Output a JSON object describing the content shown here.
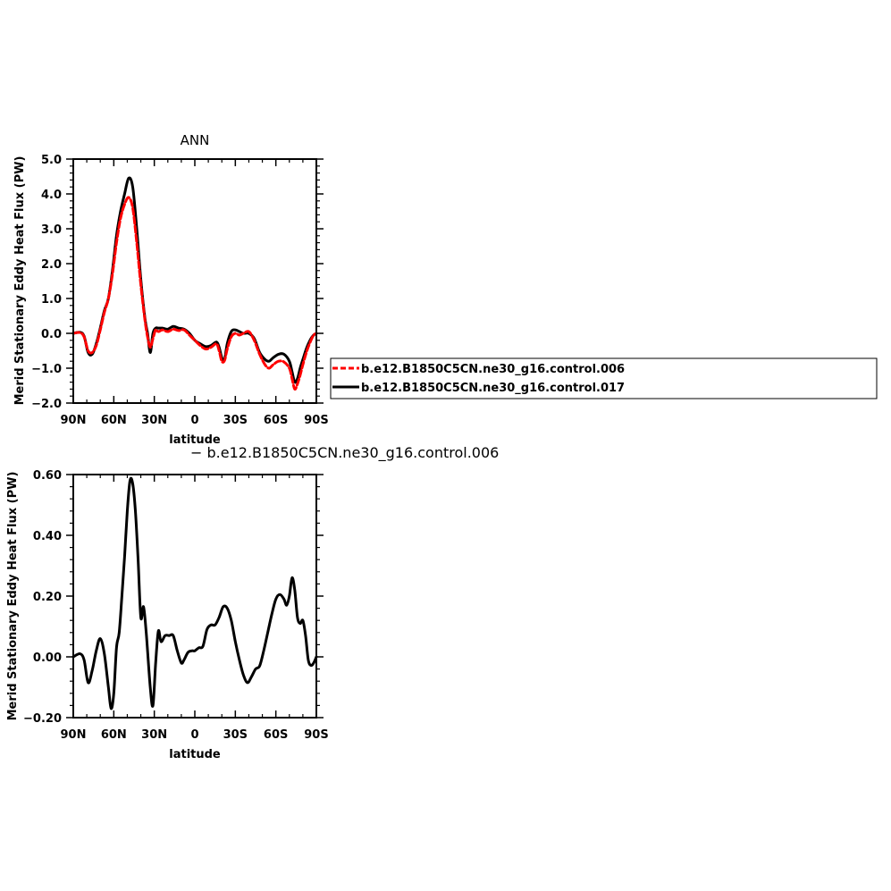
{
  "chart_data": [
    {
      "type": "line",
      "title": "ANN",
      "xlabel": "latitude",
      "ylabel": "Merid Stationary Eddy Heat Flux (PW)",
      "xlim": [
        90,
        -90
      ],
      "ylim": [
        -2.0,
        5.0
      ],
      "x_ticks": [
        90,
        60,
        30,
        0,
        -30,
        -60,
        -90
      ],
      "x_tick_labels": [
        "90N",
        "60N",
        "30N",
        "0",
        "30S",
        "60S",
        "90S"
      ],
      "y_ticks": [
        -2.0,
        -1.0,
        0.0,
        1.0,
        2.0,
        3.0,
        4.0,
        5.0
      ],
      "y_tick_labels": [
        "−2.0",
        "−1.0",
        "0.0",
        "1.0",
        "2.0",
        "3.0",
        "4.0",
        "5.0"
      ],
      "legend_position": "outside-right",
      "series": [
        {
          "name": "b.e12.B1850C5CN.ne30_g16.control.006",
          "color": "#ff0000",
          "dash": "dashed",
          "x": [
            90,
            85,
            82,
            79,
            76,
            73,
            70,
            67,
            64,
            61,
            58,
            55,
            52,
            49,
            46,
            43,
            40,
            37,
            35,
            33,
            31,
            29,
            27,
            24,
            20,
            16,
            12,
            8,
            4,
            0,
            -4,
            -8,
            -12,
            -16,
            -18,
            -20,
            -22,
            -24,
            -27,
            -30,
            -33,
            -36,
            -40,
            -44,
            -48,
            -52,
            -55,
            -58,
            -62,
            -66,
            -70,
            -72,
            -74,
            -76,
            -78,
            -80,
            -83,
            -86,
            -88,
            -90
          ],
          "y": [
            0.0,
            0.02,
            -0.1,
            -0.5,
            -0.55,
            -0.35,
            0.1,
            0.6,
            1.0,
            1.7,
            2.6,
            3.3,
            3.7,
            3.9,
            3.6,
            2.6,
            1.4,
            0.4,
            -0.1,
            -0.4,
            -0.15,
            0.1,
            0.05,
            0.1,
            0.05,
            0.12,
            0.08,
            0.1,
            -0.05,
            -0.2,
            -0.35,
            -0.45,
            -0.4,
            -0.3,
            -0.5,
            -0.8,
            -0.78,
            -0.45,
            -0.1,
            0.0,
            -0.05,
            0.0,
            0.05,
            -0.2,
            -0.6,
            -0.9,
            -1.0,
            -0.9,
            -0.8,
            -0.82,
            -1.0,
            -1.3,
            -1.6,
            -1.45,
            -1.2,
            -0.9,
            -0.5,
            -0.2,
            -0.05,
            0.0
          ]
        },
        {
          "name": "b.e12.B1850C5CN.ne30_g16.control.017",
          "color": "#000000",
          "dash": "solid",
          "x": [
            90,
            85,
            82,
            79,
            76,
            73,
            70,
            67,
            64,
            61,
            58,
            55,
            52,
            49,
            46,
            43,
            40,
            37,
            35,
            33,
            31,
            29,
            27,
            24,
            20,
            16,
            12,
            8,
            4,
            0,
            -4,
            -8,
            -12,
            -16,
            -18,
            -20,
            -22,
            -24,
            -27,
            -30,
            -33,
            -36,
            -40,
            -44,
            -48,
            -52,
            -55,
            -58,
            -62,
            -66,
            -70,
            -72,
            -74,
            -76,
            -78,
            -80,
            -83,
            -86,
            -88,
            -90
          ],
          "y": [
            0.0,
            0.03,
            -0.08,
            -0.55,
            -0.6,
            -0.3,
            0.15,
            0.65,
            1.0,
            1.8,
            2.8,
            3.5,
            4.0,
            4.45,
            4.2,
            3.0,
            1.55,
            0.45,
            0.0,
            -0.55,
            0.0,
            0.15,
            0.15,
            0.15,
            0.12,
            0.2,
            0.15,
            0.12,
            0.0,
            -0.2,
            -0.3,
            -0.38,
            -0.35,
            -0.25,
            -0.4,
            -0.7,
            -0.75,
            -0.3,
            0.05,
            0.1,
            0.05,
            0.0,
            0.0,
            -0.15,
            -0.55,
            -0.75,
            -0.8,
            -0.7,
            -0.6,
            -0.6,
            -0.8,
            -1.1,
            -1.4,
            -1.3,
            -1.0,
            -0.75,
            -0.4,
            -0.15,
            -0.05,
            0.0
          ]
        }
      ]
    },
    {
      "type": "line",
      "title": "− b.e12.B1850C5CN.ne30_g16.control.006",
      "xlabel": "latitude",
      "ylabel": "Merid Stationary Eddy Heat Flux (PW)",
      "xlim": [
        90,
        -90
      ],
      "ylim": [
        -0.2,
        0.6
      ],
      "x_ticks": [
        90,
        60,
        30,
        0,
        -30,
        -60,
        -90
      ],
      "x_tick_labels": [
        "90N",
        "60N",
        "30N",
        "0",
        "30S",
        "60S",
        "90S"
      ],
      "y_ticks": [
        -0.2,
        0.0,
        0.2,
        0.4,
        0.6
      ],
      "y_tick_labels": [
        "−0.20",
        "0.00",
        "0.20",
        "0.40",
        "0.60"
      ],
      "series": [
        {
          "color": "#000000",
          "dash": "solid",
          "x": [
            90,
            85,
            82,
            79,
            76,
            73,
            70,
            67,
            64,
            62,
            60,
            58,
            56,
            54,
            52,
            50,
            48,
            46,
            44,
            42,
            40,
            38,
            36,
            33,
            31,
            29,
            27,
            25,
            22,
            19,
            16,
            13,
            10,
            8,
            5,
            2,
            0,
            -3,
            -6,
            -9,
            -12,
            -15,
            -18,
            -21,
            -24,
            -27,
            -30,
            -33,
            -36,
            -39,
            -42,
            -45,
            -48,
            -51,
            -54,
            -57,
            -60,
            -63,
            -66,
            -68,
            -70,
            -72,
            -74,
            -76,
            -78,
            -80,
            -82,
            -84,
            -86,
            -88,
            -90
          ],
          "y": [
            0.0,
            0.01,
            -0.01,
            -0.085,
            -0.045,
            0.02,
            0.06,
            0.01,
            -0.1,
            -0.17,
            -0.12,
            0.03,
            0.08,
            0.2,
            0.33,
            0.48,
            0.58,
            0.57,
            0.48,
            0.32,
            0.13,
            0.165,
            0.08,
            -0.1,
            -0.16,
            -0.02,
            0.085,
            0.05,
            0.07,
            0.07,
            0.07,
            0.02,
            -0.02,
            -0.01,
            0.015,
            0.02,
            0.02,
            0.03,
            0.035,
            0.09,
            0.105,
            0.105,
            0.13,
            0.165,
            0.16,
            0.12,
            0.05,
            -0.01,
            -0.06,
            -0.085,
            -0.065,
            -0.04,
            -0.03,
            0.02,
            0.08,
            0.14,
            0.19,
            0.205,
            0.19,
            0.17,
            0.2,
            0.26,
            0.22,
            0.13,
            0.11,
            0.12,
            0.07,
            -0.01,
            -0.028,
            -0.02,
            0.0
          ]
        }
      ]
    }
  ]
}
